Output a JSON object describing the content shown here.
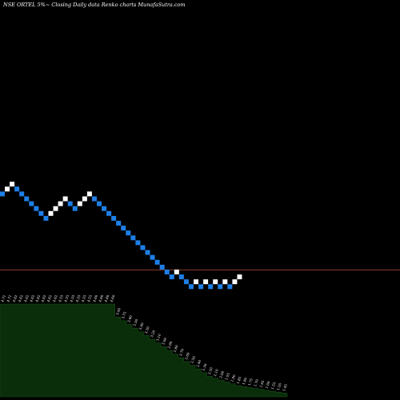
{
  "chart_data": {
    "type": "renko",
    "title": "NSE ORTEL 5%~  Closing Daily data  Renko  charts MunafaSutra.com",
    "colors": {
      "background": "#000000",
      "up_brick": "#ffffff",
      "down_brick": "#1e7fe6",
      "reference_line": "#8b3a2a",
      "volume_fill": "#0a2e0a",
      "volume_edge": "#1a4d1a",
      "label": "#ffffff"
    },
    "bricks": [
      "down",
      "up",
      "up",
      "down",
      "down",
      "down",
      "down",
      "down",
      "down",
      "down",
      "up",
      "up",
      "up",
      "up",
      "down",
      "down",
      "up",
      "up",
      "up",
      "down",
      "down",
      "down",
      "down",
      "down",
      "down",
      "down",
      "down",
      "down",
      "down",
      "down",
      "down",
      "down",
      "down",
      "down",
      "down",
      "down",
      "up",
      "down",
      "down",
      "down",
      "up",
      "down",
      "up",
      "down",
      "up",
      "down",
      "up",
      "down",
      "up",
      "up"
    ],
    "first_brick_level": 16,
    "reference_level": 1,
    "volume_labels": [
      "4.71",
      "4.71",
      "4.62",
      "4.62",
      "4.62",
      "4.62",
      "4.62",
      "4.62",
      "4.62",
      "4.62",
      "4.55",
      "4.55",
      "4.55",
      "4.55",
      "4.55",
      "4.55",
      "4.60",
      "4.60",
      "4.60",
      "4.60",
      "3.90",
      "3.75",
      "3.60",
      "3.50",
      "3.40",
      "3.30",
      "3.20",
      "3.10",
      "3.00",
      "2.90",
      "2.80",
      "2.70",
      "2.60",
      "2.50",
      "2.40",
      "2.30",
      "2.20",
      "2.10",
      "2.00",
      "1.95",
      "1.90",
      "1.85",
      "1.80",
      "1.75",
      "1.70",
      "1.65",
      "1.60",
      "1.55",
      "1.50",
      "1.45"
    ],
    "volume_values": [
      100,
      100,
      100,
      100,
      100,
      100,
      100,
      100,
      100,
      100,
      100,
      100,
      100,
      100,
      100,
      100,
      100,
      100,
      100,
      100,
      86,
      82,
      78,
      74,
      70,
      66,
      62,
      58,
      54,
      50,
      46,
      42,
      38,
      34,
      30,
      26,
      22,
      20,
      18,
      16,
      14,
      12,
      11,
      10,
      9,
      8,
      7,
      6,
      5,
      4
    ]
  }
}
